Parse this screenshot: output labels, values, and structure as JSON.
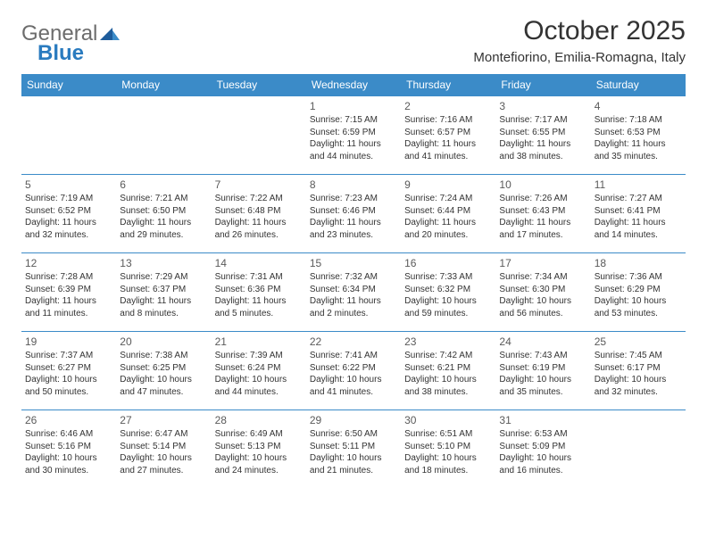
{
  "brand": {
    "name_part1": "General",
    "name_part2": "Blue",
    "text_color": "#6c6c6c",
    "accent_color": "#2a7bbf"
  },
  "title": "October 2025",
  "location": "Montefiorino, Emilia-Romagna, Italy",
  "header_bg": "#3b8bc8",
  "header_fg": "#ffffff",
  "border_color": "#3b8bc8",
  "day_names": [
    "Sunday",
    "Monday",
    "Tuesday",
    "Wednesday",
    "Thursday",
    "Friday",
    "Saturday"
  ],
  "weeks": [
    [
      {
        "n": "",
        "sr": "",
        "ss": "",
        "dl": ""
      },
      {
        "n": "",
        "sr": "",
        "ss": "",
        "dl": ""
      },
      {
        "n": "",
        "sr": "",
        "ss": "",
        "dl": ""
      },
      {
        "n": "1",
        "sr": "7:15 AM",
        "ss": "6:59 PM",
        "dl": "11 hours and 44 minutes."
      },
      {
        "n": "2",
        "sr": "7:16 AM",
        "ss": "6:57 PM",
        "dl": "11 hours and 41 minutes."
      },
      {
        "n": "3",
        "sr": "7:17 AM",
        "ss": "6:55 PM",
        "dl": "11 hours and 38 minutes."
      },
      {
        "n": "4",
        "sr": "7:18 AM",
        "ss": "6:53 PM",
        "dl": "11 hours and 35 minutes."
      }
    ],
    [
      {
        "n": "5",
        "sr": "7:19 AM",
        "ss": "6:52 PM",
        "dl": "11 hours and 32 minutes."
      },
      {
        "n": "6",
        "sr": "7:21 AM",
        "ss": "6:50 PM",
        "dl": "11 hours and 29 minutes."
      },
      {
        "n": "7",
        "sr": "7:22 AM",
        "ss": "6:48 PM",
        "dl": "11 hours and 26 minutes."
      },
      {
        "n": "8",
        "sr": "7:23 AM",
        "ss": "6:46 PM",
        "dl": "11 hours and 23 minutes."
      },
      {
        "n": "9",
        "sr": "7:24 AM",
        "ss": "6:44 PM",
        "dl": "11 hours and 20 minutes."
      },
      {
        "n": "10",
        "sr": "7:26 AM",
        "ss": "6:43 PM",
        "dl": "11 hours and 17 minutes."
      },
      {
        "n": "11",
        "sr": "7:27 AM",
        "ss": "6:41 PM",
        "dl": "11 hours and 14 minutes."
      }
    ],
    [
      {
        "n": "12",
        "sr": "7:28 AM",
        "ss": "6:39 PM",
        "dl": "11 hours and 11 minutes."
      },
      {
        "n": "13",
        "sr": "7:29 AM",
        "ss": "6:37 PM",
        "dl": "11 hours and 8 minutes."
      },
      {
        "n": "14",
        "sr": "7:31 AM",
        "ss": "6:36 PM",
        "dl": "11 hours and 5 minutes."
      },
      {
        "n": "15",
        "sr": "7:32 AM",
        "ss": "6:34 PM",
        "dl": "11 hours and 2 minutes."
      },
      {
        "n": "16",
        "sr": "7:33 AM",
        "ss": "6:32 PM",
        "dl": "10 hours and 59 minutes."
      },
      {
        "n": "17",
        "sr": "7:34 AM",
        "ss": "6:30 PM",
        "dl": "10 hours and 56 minutes."
      },
      {
        "n": "18",
        "sr": "7:36 AM",
        "ss": "6:29 PM",
        "dl": "10 hours and 53 minutes."
      }
    ],
    [
      {
        "n": "19",
        "sr": "7:37 AM",
        "ss": "6:27 PM",
        "dl": "10 hours and 50 minutes."
      },
      {
        "n": "20",
        "sr": "7:38 AM",
        "ss": "6:25 PM",
        "dl": "10 hours and 47 minutes."
      },
      {
        "n": "21",
        "sr": "7:39 AM",
        "ss": "6:24 PM",
        "dl": "10 hours and 44 minutes."
      },
      {
        "n": "22",
        "sr": "7:41 AM",
        "ss": "6:22 PM",
        "dl": "10 hours and 41 minutes."
      },
      {
        "n": "23",
        "sr": "7:42 AM",
        "ss": "6:21 PM",
        "dl": "10 hours and 38 minutes."
      },
      {
        "n": "24",
        "sr": "7:43 AM",
        "ss": "6:19 PM",
        "dl": "10 hours and 35 minutes."
      },
      {
        "n": "25",
        "sr": "7:45 AM",
        "ss": "6:17 PM",
        "dl": "10 hours and 32 minutes."
      }
    ],
    [
      {
        "n": "26",
        "sr": "6:46 AM",
        "ss": "5:16 PM",
        "dl": "10 hours and 30 minutes."
      },
      {
        "n": "27",
        "sr": "6:47 AM",
        "ss": "5:14 PM",
        "dl": "10 hours and 27 minutes."
      },
      {
        "n": "28",
        "sr": "6:49 AM",
        "ss": "5:13 PM",
        "dl": "10 hours and 24 minutes."
      },
      {
        "n": "29",
        "sr": "6:50 AM",
        "ss": "5:11 PM",
        "dl": "10 hours and 21 minutes."
      },
      {
        "n": "30",
        "sr": "6:51 AM",
        "ss": "5:10 PM",
        "dl": "10 hours and 18 minutes."
      },
      {
        "n": "31",
        "sr": "6:53 AM",
        "ss": "5:09 PM",
        "dl": "10 hours and 16 minutes."
      },
      {
        "n": "",
        "sr": "",
        "ss": "",
        "dl": ""
      }
    ]
  ],
  "labels": {
    "sunrise": "Sunrise:",
    "sunset": "Sunset:",
    "daylight": "Daylight:"
  },
  "fonts": {
    "title_size": 30,
    "location_size": 15,
    "header_size": 12,
    "daynum_size": 12,
    "body_size": 10
  }
}
